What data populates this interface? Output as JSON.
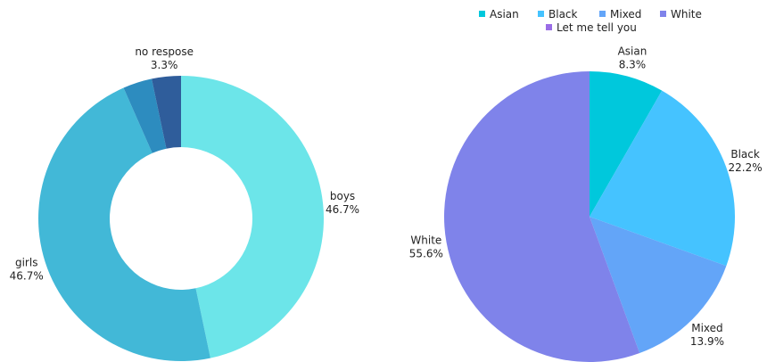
{
  "chart_data": [
    {
      "type": "donut",
      "title": "",
      "slices": [
        {
          "label": "boys",
          "value": 46.7,
          "pct_text": "46.7%",
          "color": "#6ce5e9"
        },
        {
          "label": "girls",
          "value": 46.7,
          "pct_text": "46.7%",
          "color": "#42b8d7"
        },
        {
          "label": "",
          "value": 3.3,
          "pct_text": "",
          "color": "#2d8cbf"
        },
        {
          "label": "no respose",
          "value": 3.3,
          "pct_text": "3.3%",
          "color": "#2f5d9b"
        }
      ]
    },
    {
      "type": "pie",
      "title": "",
      "legend_position": "top",
      "legend": [
        {
          "label": "Asian",
          "color": "#00c8dc"
        },
        {
          "label": "Black",
          "color": "#45c3ff"
        },
        {
          "label": "Mixed",
          "color": "#63a5f8"
        },
        {
          "label": "White",
          "color": "#7f83ea"
        },
        {
          "label": "Let me tell you",
          "color": "#9a6de6"
        }
      ],
      "slices": [
        {
          "label": "Asian",
          "value": 8.3,
          "pct_text": "8.3%",
          "color": "#00c8dc"
        },
        {
          "label": "Black",
          "value": 22.2,
          "pct_text": "22.2%",
          "color": "#45c3ff"
        },
        {
          "label": "Mixed",
          "value": 13.9,
          "pct_text": "13.9%",
          "color": "#63a5f8"
        },
        {
          "label": "White",
          "value": 55.6,
          "pct_text": "55.6%",
          "color": "#7f83ea"
        }
      ]
    }
  ]
}
